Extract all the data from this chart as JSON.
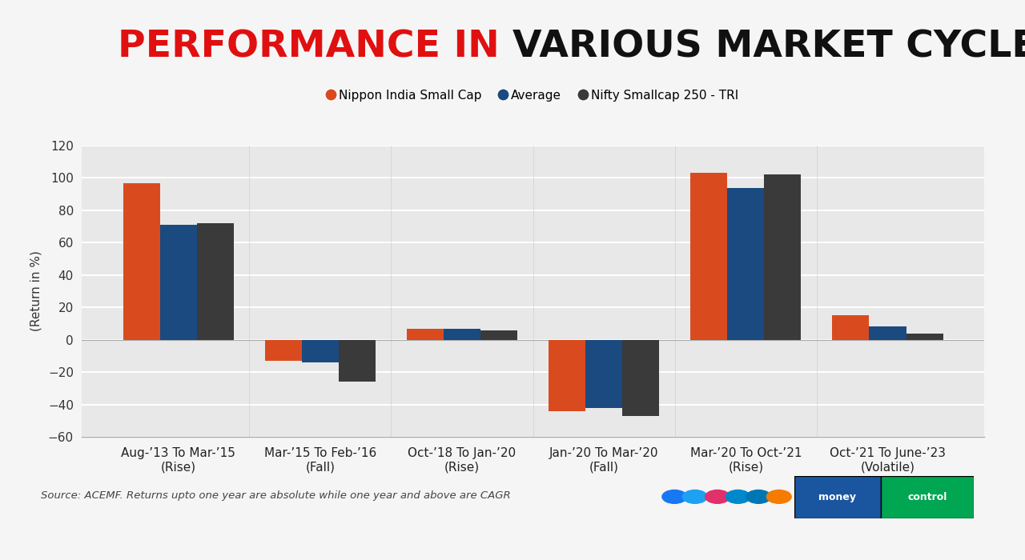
{
  "title_part1": "PERFORMANCE IN ",
  "title_part2": "VARIOUS MARKET CYCLES",
  "title_color1": "#e01010",
  "title_color2": "#111111",
  "categories": [
    "Aug-’13 To Mar-’15\n(Rise)",
    "Mar-’15 To Feb-’16\n(Fall)",
    "Oct-’18 To Jan-’20\n(Rise)",
    "Jan-’20 To Mar-’20\n(Fall)",
    "Mar-’20 To Oct-’21\n(Rise)",
    "Oct-’21 To June-’23\n(Volatile)"
  ],
  "nippon": [
    97,
    -13,
    7,
    -44,
    103,
    15
  ],
  "average": [
    71,
    -14,
    7,
    -42,
    94,
    8
  ],
  "nifty": [
    72,
    -26,
    6,
    -47,
    102,
    4
  ],
  "nippon_color": "#d94b1f",
  "average_color": "#1a4a80",
  "nifty_color": "#3a3a3a",
  "legend_labels": [
    "Nippon India Small Cap",
    "Average",
    "Nifty Smallcap 250 - TRI"
  ],
  "ylabel": "(Return in %)",
  "ylim": [
    -60,
    120
  ],
  "yticks": [
    -60,
    -40,
    -20,
    0,
    20,
    40,
    60,
    80,
    100,
    120
  ],
  "bar_width": 0.26,
  "source_text": "Source: ACEMF. Returns upto one year are absolute while one year and above are CAGR",
  "bg_color": "#f5f5f5",
  "plot_bg_color": "#e8e8e8",
  "grid_color": "#ffffff",
  "title_fontsize": 34,
  "tick_fontsize": 11,
  "legend_fontsize": 11,
  "header_color": "#29b6c8",
  "footer_color": "#29b6c8",
  "social_colors": [
    "#1877f2",
    "#1da1f2",
    "#e1306c",
    "#0088cc",
    "#0077b5",
    "#f57c00"
  ],
  "mc_bg": "#00a651",
  "mc_text_color": "#ffffff",
  "mc_blue": "#1a56a0"
}
